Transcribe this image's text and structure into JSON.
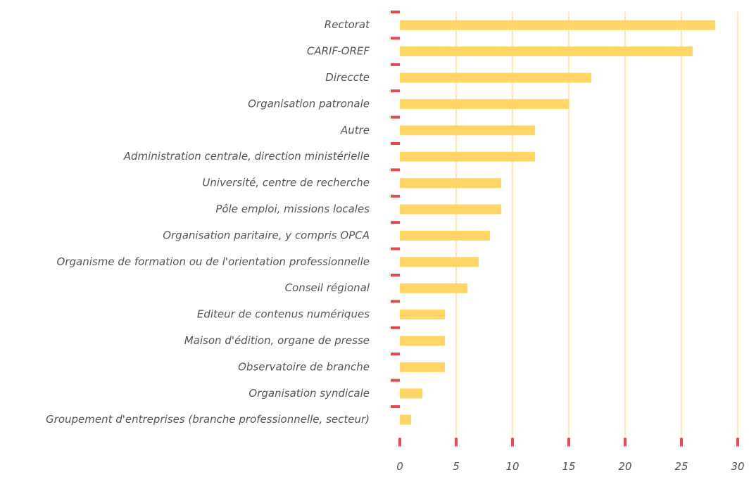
{
  "chart_data": {
    "type": "bar",
    "orientation": "horizontal",
    "categories": [
      "Rectorat",
      "CARIF-OREF",
      "Direccte",
      "Organisation patronale",
      "Autre",
      "Administration centrale, direction ministérielle",
      "Université, centre de recherche",
      "Pôle emploi, missions locales",
      "Organisation paritaire, y compris OPCA",
      "Organisme de formation ou de l'orientation professionnelle",
      "Conseil régional",
      "Editeur de contenus numériques",
      "Maison d'édition, organe de presse",
      "Observatoire de branche",
      "Organisation syndicale",
      "Groupement  d'entreprises (branche professionnelle, secteur)"
    ],
    "values": [
      28,
      26,
      17,
      15,
      12,
      12,
      9,
      9,
      8,
      7,
      6,
      4,
      4,
      4,
      2,
      1
    ],
    "color": "#ffd666",
    "grid_color": "#ffd666",
    "tick_color": "#e8474f",
    "xlim": [
      0,
      30
    ],
    "xticks": [
      0,
      5,
      10,
      15,
      20,
      25,
      30
    ],
    "grid": true
  }
}
